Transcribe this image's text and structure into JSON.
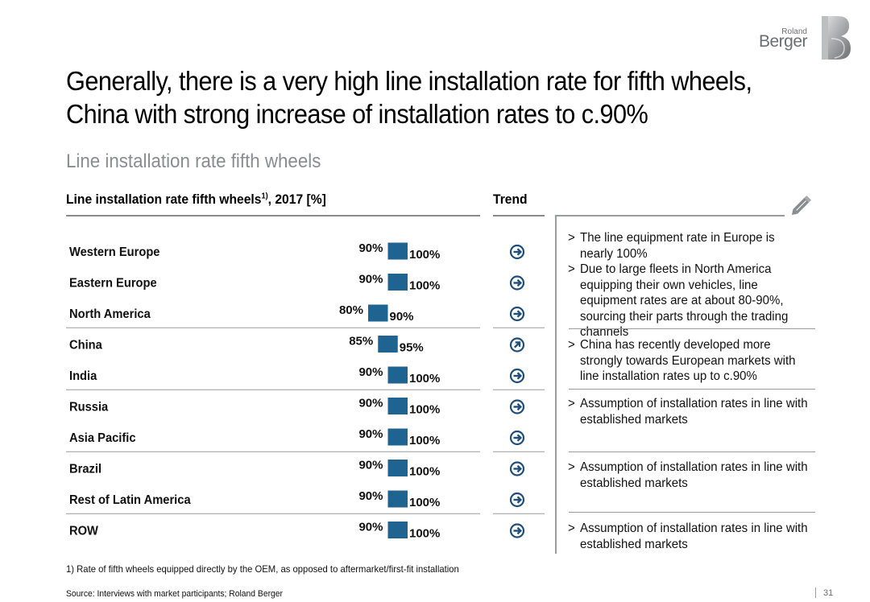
{
  "brand": {
    "line1": "Roland",
    "line2": "Berger"
  },
  "headline": "Generally, there is a very high line installation rate for fifth wheels, China with strong increase of installation rates to c.90%",
  "subtitle": "Line installation rate fifth wheels",
  "chart_heading": {
    "text": "Line installation rate fifth wheels",
    "sup": "1)",
    "rest": ", 2017 [%]"
  },
  "trend_heading": "Trend",
  "chart_data": {
    "type": "bar",
    "title": "Line installation rate fifth wheels 1), 2017 [%]",
    "bar_style": "floating-range",
    "categories": [
      "Western Europe",
      "Eastern Europe",
      "North America",
      "China",
      "India",
      "Russia",
      "Asia Pacific",
      "Brazil",
      "Rest of Latin America",
      "ROW"
    ],
    "series": [
      {
        "name": "low",
        "values": [
          90,
          90,
          80,
          85,
          90,
          90,
          90,
          90,
          90,
          90
        ]
      },
      {
        "name": "high",
        "values": [
          100,
          100,
          90,
          95,
          100,
          100,
          100,
          100,
          100,
          100
        ]
      }
    ],
    "low_labels": [
      "90%",
      "90%",
      "80%",
      "85%",
      "90%",
      "90%",
      "90%",
      "90%",
      "90%",
      "90%"
    ],
    "high_labels": [
      "100%",
      "100%",
      "90%",
      "95%",
      "100%",
      "100%",
      "100%",
      "100%",
      "100%",
      "100%"
    ],
    "trend": [
      "stable",
      "stable",
      "stable",
      "increasing",
      "stable",
      "stable",
      "stable",
      "stable",
      "stable",
      "stable"
    ],
    "trend_icons": [
      "arrow-right-circle-icon",
      "arrow-right-circle-icon",
      "arrow-right-circle-icon",
      "arrow-up-right-circle-icon",
      "arrow-right-circle-icon",
      "arrow-right-circle-icon",
      "arrow-right-circle-icon",
      "arrow-right-circle-icon",
      "arrow-right-circle-icon",
      "arrow-right-circle-icon"
    ],
    "groups": [
      [
        0,
        2
      ],
      [
        3,
        4
      ],
      [
        5,
        6
      ],
      [
        7,
        8
      ],
      [
        9,
        9
      ]
    ],
    "bar_color": "#1f6391",
    "grid": false,
    "legend": "none"
  },
  "comments": [
    {
      "bullets": [
        {
          "marker": ">",
          "text": "The line equipment rate in Europe is nearly 100%"
        },
        {
          "marker": ">",
          "text": "Due to large fleets in North America equipping their own vehicles, line equipment rates are at about 80-90%, sourcing their parts through the trading channels"
        }
      ]
    },
    {
      "bullets": [
        {
          "marker": ">",
          "text": "China has recently developed more strongly towards European markets with line installation rates up to c.90%"
        }
      ]
    },
    {
      "bullets": [
        {
          "marker": ">",
          "text": "Assumption of installation rates in line with established markets"
        }
      ]
    },
    {
      "bullets": [
        {
          "marker": ">",
          "text": "Assumption of installation rates in line with established markets"
        }
      ]
    },
    {
      "bullets": [
        {
          "marker": ">",
          "text": "Assumption of installation rates in line with established markets"
        }
      ]
    }
  ],
  "footnote": "1) Rate of fifth wheels equipped directly by the OEM, as opposed to aftermarket/first-fit installation",
  "source": "Source: Interviews with market participants; Roland Berger",
  "page_number": "31",
  "icons": {
    "comment": "pencil-icon",
    "logo": "roland-berger-logo"
  }
}
